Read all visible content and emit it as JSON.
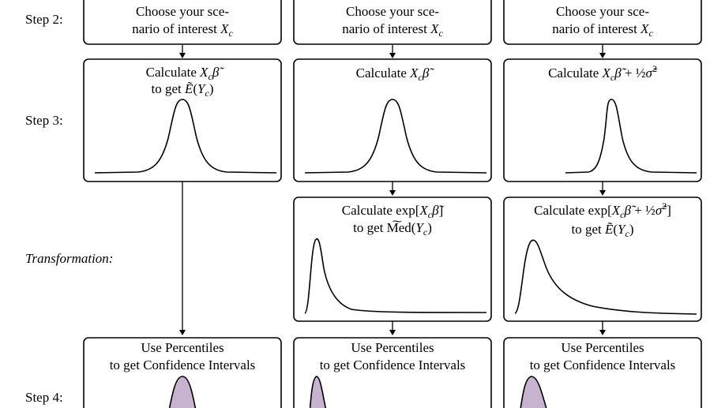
{
  "steps": {
    "step2": "Step 2:",
    "step3": "Step 3:",
    "transformation": "Transformation:",
    "step4": "Step 4:"
  },
  "columns": [
    {
      "step2_line1": "Choose your sce-",
      "step2_line2_prefix": "nario of interest",
      "step3_line1": "Calculate X_c β̃",
      "step3_line2": "to get Ẽ(Y_c)",
      "step4_line1": "Use Percentiles",
      "step4_line2": "to get Confidence Intervals"
    },
    {
      "step2_line1": "Choose your sce-",
      "step2_line2_prefix": "nario of interest",
      "step3_line1": "Calculate X_c β̃",
      "trans_line1": "Calculate exp[X_c β̃]",
      "trans_line2": "to get Med(Y_c)",
      "step4_line1": "Use Percentiles",
      "step4_line2": "to get Confidence Intervals"
    },
    {
      "step2_line1": "Choose your sce-",
      "step2_line2_prefix": "nario of interest",
      "step3_line1": "Calculate X_c β̃ + ½σ̃²",
      "trans_line1": "Calculate exp[X_c β̃ + ½σ̃²]",
      "trans_line2": "to get Ẽ(Y_c)",
      "step4_line1": "Use Percentiles",
      "step4_line2": "to get Confidence Intervals"
    }
  ],
  "colors": {
    "distribution_fill": "#c7b3cf",
    "stroke": "#000000"
  }
}
